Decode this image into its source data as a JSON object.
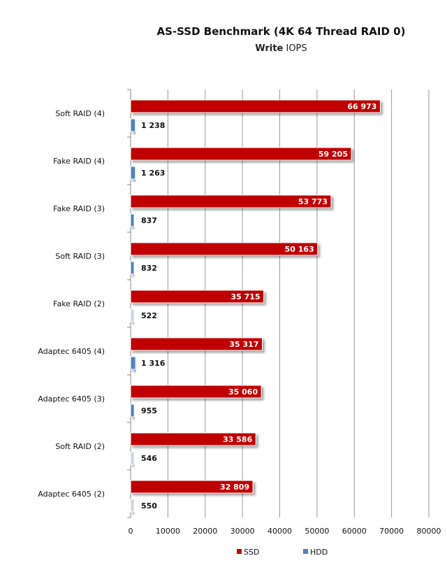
{
  "chart_title": "AS-SSD Benchmark (4K 64 Thread RAID 0)",
  "chart_subtitle_bold": "Write",
  "chart_subtitle_rest": " IOPS",
  "colors": {
    "ssd": "#c00000",
    "hdd": "#4f81bd"
  },
  "chart_data": {
    "type": "bar",
    "orientation": "horizontal",
    "title": "AS-SSD Benchmark (4K 64 Thread RAID 0)",
    "subtitle": "Write IOPS",
    "categories": [
      "Soft RAID (4)",
      "Fake RAID (4)",
      "Fake RAID (3)",
      "Soft RAID (3)",
      "Fake RAID (2)",
      "Adaptec 6405 (4)",
      "Adaptec 6405 (3)",
      "Soft RAID (2)",
      "Adaptec 6405 (2)"
    ],
    "series": [
      {
        "name": "SSD",
        "values": [
          66973,
          59205,
          53773,
          50163,
          35715,
          35317,
          35060,
          33586,
          32809
        ],
        "labels": [
          "66 973",
          "59 205",
          "53 773",
          "50 163",
          "35 715",
          "35 317",
          "35 060",
          "33 586",
          "32 809"
        ]
      },
      {
        "name": "HDD",
        "values": [
          1238,
          1263,
          837,
          832,
          522,
          1316,
          955,
          546,
          550
        ],
        "labels": [
          "1 238",
          "1 263",
          "837",
          "832",
          "522",
          "1 316",
          "955",
          "546",
          "550"
        ]
      }
    ],
    "xlim": [
      0,
      80000
    ],
    "xticks": [
      "0",
      "10000",
      "20000",
      "30000",
      "40000",
      "50000",
      "60000",
      "70000",
      "80000"
    ],
    "grid": true,
    "legend_position": "bottom"
  }
}
